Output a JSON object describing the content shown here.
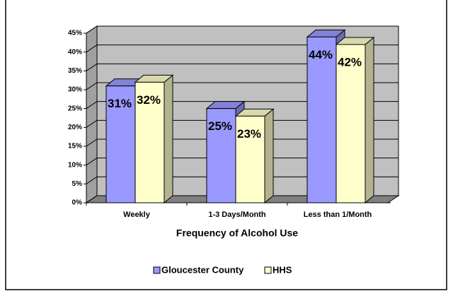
{
  "chart_data": {
    "type": "bar3d",
    "x_label": "Frequency of Alcohol Use",
    "categories": [
      "Weekly",
      "1-3 Days/Month",
      "Less than 1/Month"
    ],
    "series": [
      {
        "name": "Gloucester County",
        "color": "#9999ff",
        "values": [
          31,
          25,
          44
        ],
        "value_labels": [
          "31%",
          "25%",
          "44%"
        ]
      },
      {
        "name": "HHS",
        "color": "#ffffcc",
        "values": [
          32,
          23,
          42
        ],
        "value_labels": [
          "32%",
          "23%",
          "42%"
        ]
      }
    ],
    "ylim": [
      0,
      45
    ],
    "yticks": [
      {
        "value": 0,
        "label": "0%"
      },
      {
        "value": 5,
        "label": "5%"
      },
      {
        "value": 10,
        "label": "10%"
      },
      {
        "value": 15,
        "label": "15%"
      },
      {
        "value": 20,
        "label": "20%"
      },
      {
        "value": 25,
        "label": "25%"
      },
      {
        "value": 30,
        "label": "30%"
      },
      {
        "value": 35,
        "label": "35%"
      },
      {
        "value": 40,
        "label": "40%"
      },
      {
        "value": 45,
        "label": "45%"
      }
    ],
    "grid": true,
    "legend": "bottom"
  }
}
